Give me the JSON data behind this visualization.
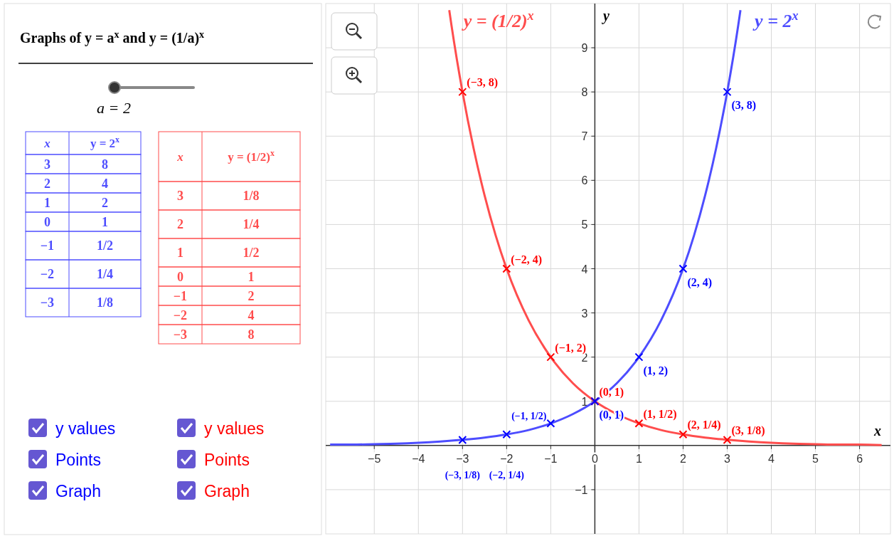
{
  "chart_data": [
    {
      "type": "other",
      "title": "Graphs of y = a$^{x}$ and y = (1/a)$^{x}$",
      "annotations": [
        "a = 2",
        "x",
        "y = 2$^{x}$",
        "3",
        "8",
        "2",
        "4",
        "1",
        "2",
        "0",
        "1",
        "−1",
        "1/2",
        "−2",
        "1/4",
        "−3",
        "1/8",
        "x",
        "y = (1/2)$^{x}$",
        "3",
        "1/8",
        "2",
        "1/4",
        "1",
        "1/2",
        "0",
        "1",
        "−1",
        "2",
        "−2",
        "4",
        "−3",
        "8",
        "y values",
        "Points",
        "Graph",
        "y values",
        "Points",
        "Graph"
      ]
    },
    {
      "type": "line",
      "xlabel": "x",
      "ylabel": "y",
      "xlim": [
        -6.1,
        6.7
      ],
      "ylim": [
        -2,
        10
      ],
      "xticks": [
        -5,
        -4,
        -3,
        -2,
        -1,
        0,
        1,
        2,
        3,
        4,
        5,
        6
      ],
      "yticks": [
        -1,
        1,
        2,
        3,
        4,
        5,
        6,
        7,
        8,
        9
      ],
      "grid": true,
      "series": [
        {
          "name": "y = (1/2)$^{x}$",
          "color": "#ff4d4d",
          "type": "line",
          "x": [
            -3.3,
            -3.25,
            -3,
            -2.75,
            -2.5,
            -2.25,
            -2,
            -1.5,
            -1,
            -0.5,
            0,
            0.5,
            1,
            1.5,
            2,
            2.5,
            3,
            3.5,
            4,
            4.5,
            5,
            5.5,
            6,
            6.5
          ],
          "values": [
            9.85,
            9.51,
            8,
            6.73,
            5.66,
            4.76,
            4,
            2.83,
            2,
            1.41,
            1,
            0.71,
            0.5,
            0.35,
            0.25,
            0.18,
            0.13,
            0.09,
            0.06,
            0.04,
            0.03,
            0.02,
            0.02,
            0.01
          ]
        },
        {
          "name": "y = 2$^{x}$",
          "color": "#4d4dff",
          "type": "line",
          "x": [
            -6,
            -5.5,
            -5,
            -4.5,
            -4,
            -3.5,
            -3,
            -2.5,
            -2,
            -1.5,
            -1,
            -0.5,
            0,
            0.5,
            1,
            1.5,
            2,
            2.25,
            2.5,
            2.75,
            3,
            3.25,
            3.3
          ],
          "values": [
            0.02,
            0.02,
            0.03,
            0.04,
            0.06,
            0.09,
            0.13,
            0.18,
            0.25,
            0.35,
            0.5,
            0.71,
            1,
            1.41,
            2,
            2.83,
            4,
            4.76,
            5.66,
            6.73,
            8,
            9.51,
            9.85
          ]
        },
        {
          "type": "scatter",
          "color": "#ff0000",
          "marker": "cross",
          "x": [
            -3,
            -2,
            -1,
            0,
            1,
            2,
            3
          ],
          "values": [
            8,
            4,
            2,
            1,
            0.5,
            0.25,
            0.125
          ],
          "value_labels": [
            "(−3, 8)",
            "(−2, 4)",
            "(−1, 2)",
            "(0, 1)",
            "(1, 1/2)",
            "(2, 1/4)",
            "(3, 1/8)"
          ]
        },
        {
          "type": "scatter",
          "color": "#0000ff",
          "marker": "cross",
          "x": [
            -3,
            -2,
            -1,
            0,
            1,
            2,
            3
          ],
          "values": [
            0.125,
            0.25,
            0.5,
            1,
            2,
            4,
            8
          ],
          "value_labels": [
            "(−3, 1/8)",
            "(−2, 1/4)",
            "(−1, 1/2)",
            "(0, 1)",
            "(1, 2)",
            "(2, 4)",
            "(3, 8)"
          ]
        }
      ]
    }
  ]
}
